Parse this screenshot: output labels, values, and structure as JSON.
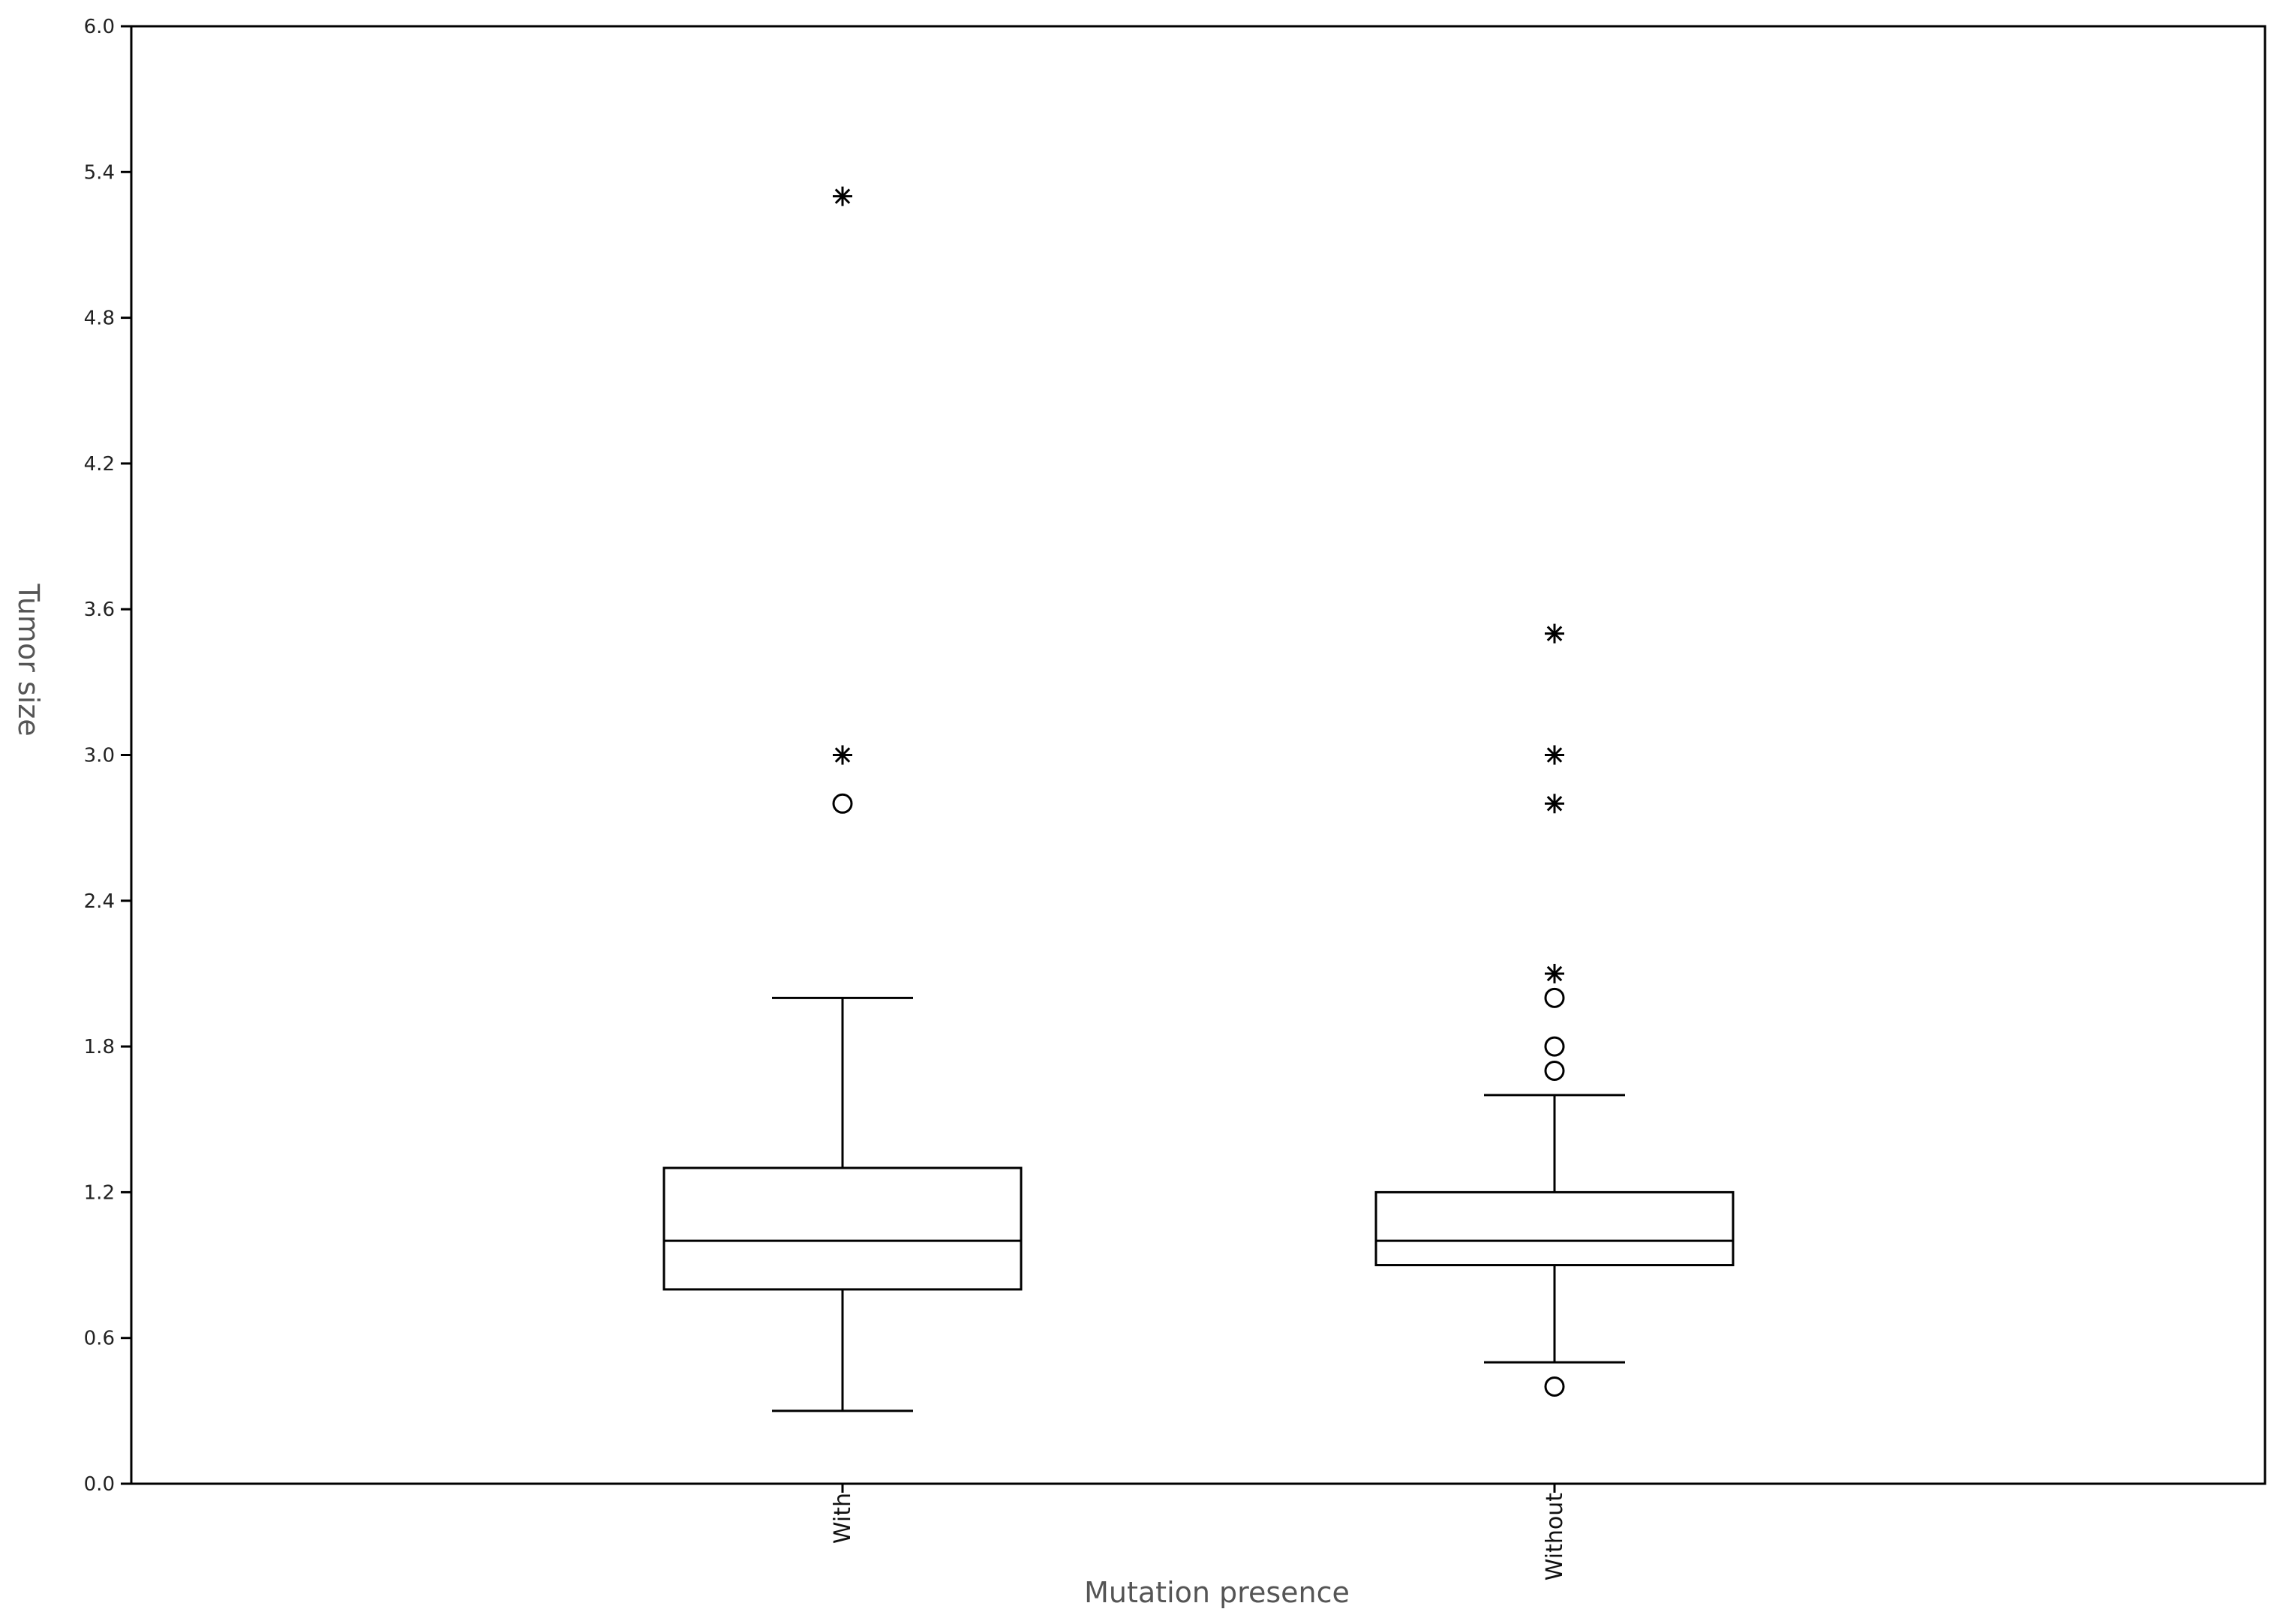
{
  "chart_data": {
    "type": "box",
    "xlabel": "Mutation presence",
    "ylabel": "Tumor size",
    "ylim": [
      0,
      6
    ],
    "yticks": [
      "0.0",
      "0.6",
      "1.2",
      "1.8",
      "2.4",
      "3.0",
      "3.6",
      "4.2",
      "4.8",
      "5.4",
      "6.0"
    ],
    "grid": false,
    "categories": [
      "With",
      "Without"
    ],
    "boxes": [
      {
        "category": "With",
        "whisker_low": 0.3,
        "q1": 0.8,
        "median": 1.0,
        "q3": 1.3,
        "whisker_high": 2.0,
        "outliers_circle": [
          2.8
        ],
        "outliers_extreme": [
          3.0,
          5.3
        ]
      },
      {
        "category": "Without",
        "whisker_low": 0.5,
        "q1": 0.9,
        "median": 1.0,
        "q3": 1.2,
        "whisker_high": 1.6,
        "outliers_circle": [
          0.4,
          1.7,
          1.8,
          2.0
        ],
        "outliers_extreme": [
          2.1,
          2.8,
          3.0,
          3.5
        ]
      }
    ]
  }
}
